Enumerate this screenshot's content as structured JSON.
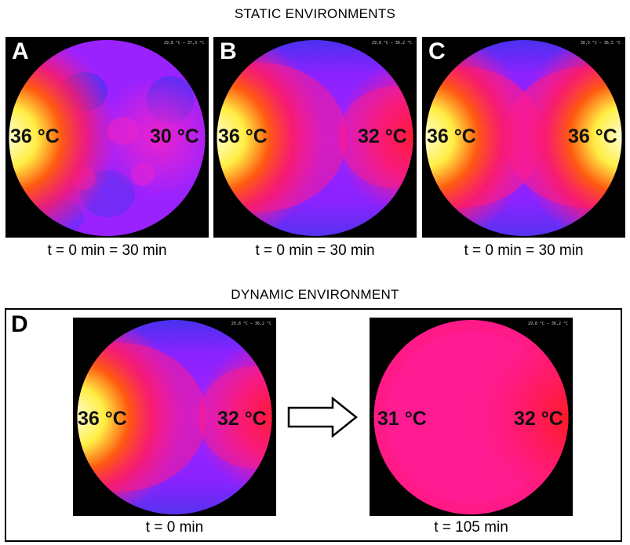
{
  "headings": {
    "static": "STATIC ENVIRONMENTS",
    "dynamic": "DYNAMIC ENVIRONMENT"
  },
  "panels": {
    "A": {
      "letter": "A",
      "left_temp": "36 °C",
      "right_temp": "30 °C",
      "caption": "t = 0 min = 30 min",
      "scale": "29,8 °C – 37,3 °C"
    },
    "B": {
      "letter": "B",
      "left_temp": "36 °C",
      "right_temp": "32 °C",
      "caption": "t = 0 min = 30 min",
      "scale": "29,8 °C – 36,2 °C"
    },
    "C": {
      "letter": "C",
      "left_temp": "36 °C",
      "right_temp": "36 °C",
      "caption": "t = 0 min = 30 min",
      "scale": "30,5 °C – 36,5 °C"
    },
    "D": {
      "letter": "D",
      "before": {
        "left_temp": "36 °C",
        "right_temp": "32 °C",
        "caption": "t = 0 min",
        "scale": "29,8 °C – 36,2 °C"
      },
      "after": {
        "left_temp": "31 °C",
        "right_temp": "32 °C",
        "caption": "t = 105 min",
        "scale": "29,8 °C – 36,2 °C"
      }
    }
  },
  "colors": {
    "hot": "#ffffcc",
    "warm": "#ff2a10",
    "mid": "#ff1a88",
    "cool": "#aa22ff",
    "cold": "#3322ee",
    "background": "#000000"
  }
}
